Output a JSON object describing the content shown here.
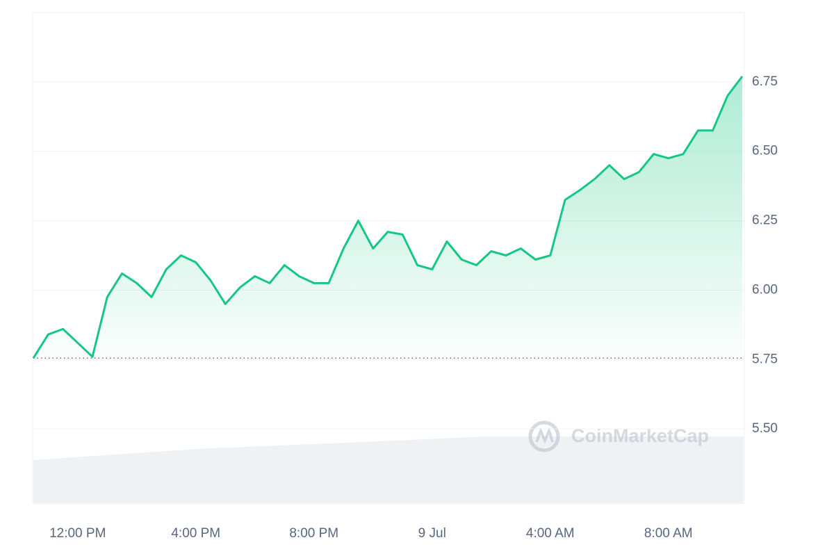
{
  "chart_data": {
    "type": "line",
    "categories": [
      null,
      null,
      null,
      "12:00 PM",
      null,
      null,
      null,
      null,
      null,
      null,
      null,
      "4:00 PM",
      null,
      null,
      null,
      null,
      null,
      null,
      null,
      "8:00 PM",
      null,
      null,
      null,
      null,
      null,
      null,
      null,
      "9 Jul",
      null,
      null,
      null,
      null,
      null,
      null,
      null,
      "4:00 AM",
      null,
      null,
      null,
      null,
      null,
      null,
      null,
      "8:00 AM",
      null,
      null,
      null,
      null,
      null
    ],
    "values": [
      5.755,
      5.84,
      5.86,
      5.81,
      5.76,
      5.975,
      6.06,
      6.025,
      5.975,
      6.075,
      6.125,
      6.1,
      6.035,
      5.95,
      6.01,
      6.05,
      6.025,
      6.09,
      6.05,
      6.025,
      6.025,
      6.15,
      6.25,
      6.15,
      6.21,
      6.2,
      6.09,
      6.075,
      6.175,
      6.11,
      6.09,
      6.14,
      6.125,
      6.15,
      6.11,
      6.125,
      6.325,
      6.36,
      6.4,
      6.45,
      6.4,
      6.425,
      6.49,
      6.475,
      6.49,
      6.575,
      6.575,
      6.7,
      6.77
    ],
    "color": "#16c784",
    "down_color": "#ea3943",
    "baseline": 5.755,
    "ylim": [
      5.23,
      7.0
    ],
    "yticks": [
      {
        "value": 5.5,
        "label": "5.50"
      },
      5.75,
      {
        "value": 6.0,
        "label": "6.00"
      },
      6.25,
      {
        "value": 6.5,
        "label": "6.50"
      },
      6.75
    ],
    "grid": true,
    "watermark": "CoinMarketCap"
  }
}
